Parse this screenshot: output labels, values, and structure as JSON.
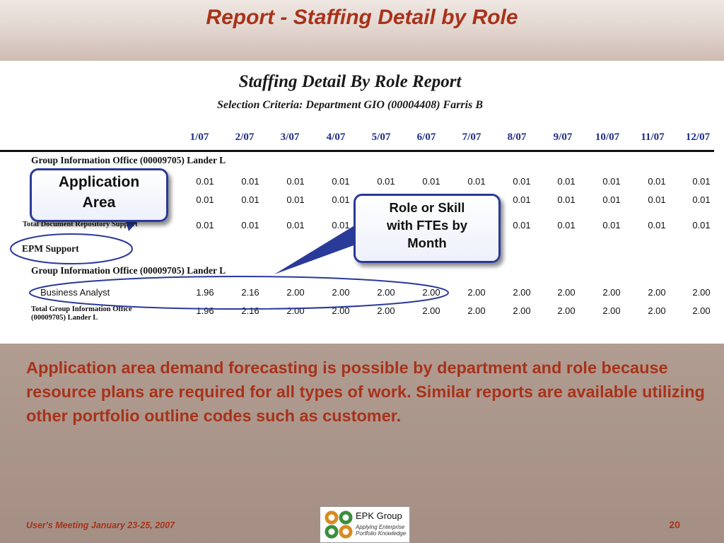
{
  "slide": {
    "title": "Report - Staffing Detail by Role"
  },
  "report": {
    "title": "Staffing Detail By Role Report",
    "criteria": "Selection Criteria: Department GIO (00004408) Farris B",
    "months": [
      "1/07",
      "2/07",
      "3/07",
      "4/07",
      "5/07",
      "6/07",
      "7/07",
      "8/07",
      "9/07",
      "10/07",
      "11/07",
      "12/07"
    ],
    "sections": {
      "group1_header": "Group Information Office (00009705) Lander L",
      "row1_values": [
        "0.01",
        "0.01",
        "0.01",
        "0.01",
        "0.01",
        "0.01",
        "0.01",
        "0.01",
        "0.01",
        "0.01",
        "0.01",
        "0.01"
      ],
      "row2_values": [
        "0.01",
        "0.01",
        "0.01",
        "0.01",
        "",
        "",
        "",
        "0.01",
        "0.01",
        "0.01",
        "0.01",
        "0.01"
      ],
      "total_doc_label": "Total Document Repository Support",
      "total_doc_values": [
        "0.01",
        "0.01",
        "0.01",
        "0.01",
        "",
        "",
        "",
        "0.01",
        "0.01",
        "0.01",
        "0.01",
        "0.01"
      ],
      "epm_label": "EPM Support",
      "group2_header": "Group Information Office (00009705) Lander L",
      "ba_label": "Business Analyst",
      "ba_values": [
        "1.96",
        "2.16",
        "2.00",
        "2.00",
        "2.00",
        "2.00",
        "2.00",
        "2.00",
        "2.00",
        "2.00",
        "2.00",
        "2.00"
      ],
      "total_gio_label_line1": "Total Group Information Office",
      "total_gio_label_line2": "(00009705) Lander L",
      "total_gio_values": [
        "1.96",
        "2.16",
        "2.00",
        "2.00",
        "2.00",
        "2.00",
        "2.00",
        "2.00",
        "2.00",
        "2.00",
        "2.00",
        "2.00"
      ]
    }
  },
  "callouts": {
    "application_line1": "Application",
    "application_line2": "Area",
    "role_line1": "Role or Skill",
    "role_line2": "with FTEs by",
    "role_line3": "Month"
  },
  "body_text": "Application area demand forecasting is possible by department and role because resource plans are required for all types of work.  Similar reports are available utilizing other  portfolio outline codes such as customer.",
  "footer": {
    "meeting": "User's Meeting January 23-25, 2007",
    "page_number": "20",
    "logo_name": "EPK Group",
    "logo_tagline_line1": "Applying Enterprise",
    "logo_tagline_line2": "Portfolio Knowledge"
  },
  "colors": {
    "accent": "#a8321a",
    "callout_border": "#2a3a98",
    "month_header": "#1f2d86"
  }
}
